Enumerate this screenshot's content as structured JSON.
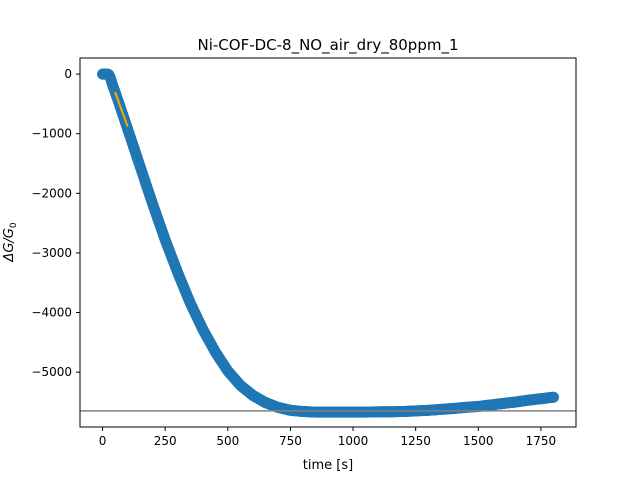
{
  "chart_data": {
    "type": "scatter",
    "title": "Ni-COF-DC-8_NO_air_dry_80ppm_1",
    "xlabel": "time [s]",
    "ylabel_html": "ΔG/G₀",
    "xlim": [
      -90,
      1890
    ],
    "ylim": [
      -5920,
      270
    ],
    "xticks": [
      0,
      250,
      500,
      750,
      1000,
      1250,
      1500,
      1750
    ],
    "yticks": [
      0,
      -1000,
      -2000,
      -3000,
      -4000,
      -5000
    ],
    "xtick_labels": [
      "0",
      "250",
      "500",
      "750",
      "1000",
      "1250",
      "1500",
      "1750"
    ],
    "ytick_labels": [
      "0",
      "−1000",
      "−2000",
      "−3000",
      "−4000",
      "−5000"
    ],
    "grid": false,
    "series": [
      {
        "color": "#1f77b4",
        "x": [
          0,
          5,
          10,
          15,
          20,
          25,
          30,
          40,
          60,
          100,
          150,
          200,
          250,
          300,
          350,
          400,
          450,
          500,
          550,
          600,
          650,
          700,
          750,
          800,
          850,
          900,
          950,
          1000,
          1050,
          1100,
          1150,
          1200,
          1250,
          1300,
          1350,
          1400,
          1450,
          1500,
          1550,
          1600,
          1650,
          1700,
          1750,
          1800
        ],
        "y": [
          0,
          0,
          0,
          0,
          0,
          -10,
          -50,
          -180,
          -420,
          -920,
          -1550,
          -2180,
          -2780,
          -3330,
          -3840,
          -4280,
          -4660,
          -4980,
          -5220,
          -5390,
          -5510,
          -5590,
          -5640,
          -5660,
          -5670,
          -5670,
          -5670,
          -5670,
          -5670,
          -5665,
          -5665,
          -5660,
          -5650,
          -5640,
          -5625,
          -5610,
          -5590,
          -5575,
          -5550,
          -5525,
          -5500,
          -5470,
          -5445,
          -5420
        ]
      },
      {
        "color": "#ffa500",
        "x": [
          50,
          100
        ],
        "y": [
          -300,
          -880
        ]
      }
    ],
    "hline": {
      "y": -5650,
      "color": "#808080"
    }
  }
}
